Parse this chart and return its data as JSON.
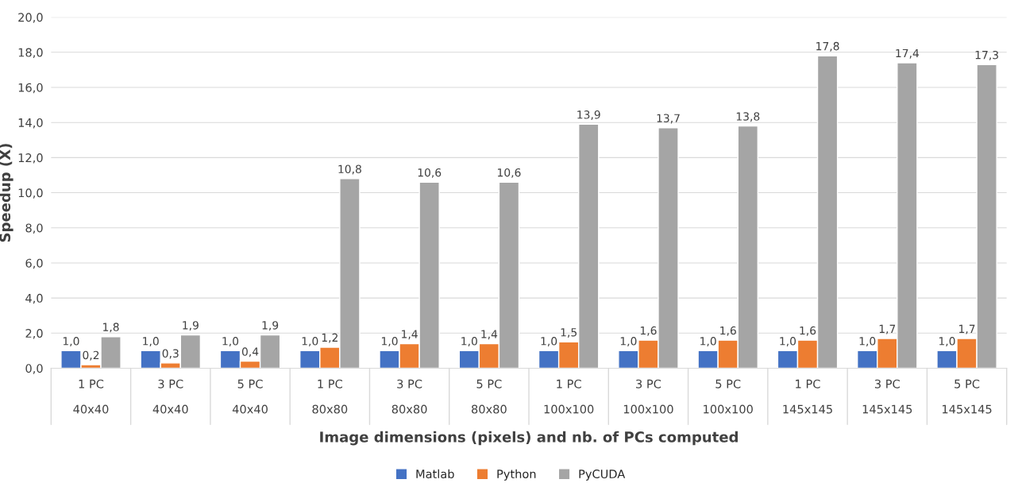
{
  "chart_data": {
    "type": "bar",
    "xlabel": "Image dimensions (pixels) and nb. of PCs computed",
    "ylabel": "Speedup (X)",
    "categories": [
      "1 PC\n40x40",
      "3 PC\n40x40",
      "5 PC\n40x40",
      "1 PC\n80x80",
      "3 PC\n80x80",
      "5 PC\n80x80",
      "1 PC\n100x100",
      "3 PC\n100x100",
      "5 PC\n100x100",
      "1 PC\n145x145",
      "3 PC\n145x145",
      "5 PC\n145x145"
    ],
    "series": [
      {
        "name": "Matlab",
        "color": "#4472c4",
        "values": [
          1.0,
          1.0,
          1.0,
          1.0,
          1.0,
          1.0,
          1.0,
          1.0,
          1.0,
          1.0,
          1.0,
          1.0
        ],
        "value_labels": [
          "1,0",
          "1,0",
          "1,0",
          "1,0",
          "1,0",
          "1,0",
          "1,0",
          "1,0",
          "1,0",
          "1,0",
          "1,0",
          "1,0"
        ]
      },
      {
        "name": "Python",
        "color": "#ed7d31",
        "values": [
          0.2,
          0.3,
          0.4,
          1.2,
          1.4,
          1.4,
          1.5,
          1.6,
          1.6,
          1.6,
          1.7,
          1.7
        ],
        "value_labels": [
          "0,2",
          "0,3",
          "0,4",
          "1,2",
          "1,4",
          "1,4",
          "1,5",
          "1,6",
          "1,6",
          "1,6",
          "1,7",
          "1,7"
        ]
      },
      {
        "name": "PyCUDA",
        "color": "#a5a5a5",
        "values": [
          1.8,
          1.9,
          1.9,
          10.8,
          10.6,
          10.6,
          13.9,
          13.7,
          13.8,
          17.8,
          17.4,
          17.3
        ],
        "value_labels": [
          "1,8",
          "1,9",
          "1,9",
          "10,8",
          "10,6",
          "10,6",
          "13,9",
          "13,7",
          "13,8",
          "17,8",
          "17,4",
          "17,3"
        ]
      }
    ],
    "ylim": [
      0,
      20
    ],
    "yticks": [
      {
        "value": 0,
        "label": "0,0"
      },
      {
        "value": 2,
        "label": "2,0"
      },
      {
        "value": 4,
        "label": "4,0"
      },
      {
        "value": 6,
        "label": "6,0"
      },
      {
        "value": 8,
        "label": "8,0"
      },
      {
        "value": 10,
        "label": "10,0"
      },
      {
        "value": 12,
        "label": "12,0"
      },
      {
        "value": 14,
        "label": "14,0"
      },
      {
        "value": 16,
        "label": "16,0"
      },
      {
        "value": 18,
        "label": "18,0"
      },
      {
        "value": 20,
        "label": "20,0"
      }
    ],
    "grid": "y",
    "legend": "bottom"
  }
}
